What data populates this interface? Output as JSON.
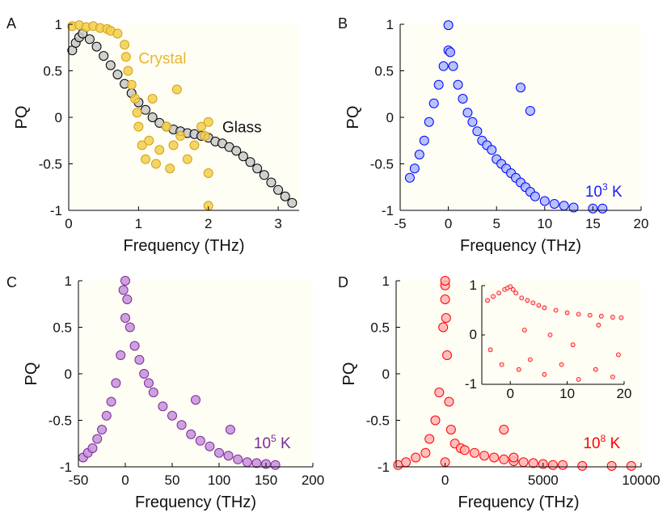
{
  "figure": {
    "background": "#ffffff",
    "plot_bg": "#fffef4"
  },
  "chart_data": [
    {
      "type": "scatter",
      "panel_label": "A",
      "xlabel": "Frequency (THz)",
      "ylabel": "PQ",
      "xlim": [
        0,
        3.3
      ],
      "ylim": [
        -1,
        1
      ],
      "xticks": [
        0,
        1,
        2,
        3
      ],
      "yticks": [
        -1,
        -0.5,
        0,
        0.5,
        1
      ],
      "xticklabels": [
        "0",
        "1",
        "2",
        "3"
      ],
      "yticklabels": [
        "-1",
        "-0.5",
        "0",
        "0.5",
        "1"
      ],
      "series": [
        {
          "name": "Glass",
          "color": "#000000",
          "fill": "#c8c8c8",
          "x": [
            0.05,
            0.1,
            0.15,
            0.2,
            0.3,
            0.4,
            0.5,
            0.6,
            0.7,
            0.8,
            0.9,
            1.0,
            1.1,
            1.2,
            1.3,
            1.4,
            1.5,
            1.6,
            1.7,
            1.8,
            1.9,
            2.0,
            2.1,
            2.2,
            2.3,
            2.4,
            2.5,
            2.6,
            2.7,
            2.8,
            2.9,
            3.0,
            3.1,
            3.2
          ],
          "y": [
            0.72,
            0.8,
            0.86,
            0.9,
            0.84,
            0.76,
            0.66,
            0.56,
            0.46,
            0.36,
            0.26,
            0.16,
            0.08,
            0.0,
            -0.06,
            -0.1,
            -0.13,
            -0.15,
            -0.17,
            -0.18,
            -0.2,
            -0.22,
            -0.26,
            -0.28,
            -0.32,
            -0.36,
            -0.42,
            -0.48,
            -0.55,
            -0.62,
            -0.7,
            -0.78,
            -0.85,
            -0.92
          ]
        },
        {
          "name": "Crystal",
          "color": "#d4a017",
          "fill": "#f2cf4a",
          "x": [
            0.05,
            0.15,
            0.25,
            0.35,
            0.45,
            0.55,
            0.6,
            0.7,
            0.8,
            0.82,
            0.85,
            0.9,
            0.95,
            0.98,
            1.0,
            1.05,
            1.1,
            1.15,
            1.2,
            1.25,
            1.3,
            1.4,
            1.45,
            1.5,
            1.55,
            1.6,
            1.7,
            1.8,
            1.9,
            1.95,
            2.0,
            2.0,
            2.0
          ],
          "y": [
            0.98,
            0.99,
            0.97,
            0.98,
            0.96,
            0.95,
            0.93,
            0.9,
            0.78,
            0.65,
            0.5,
            0.35,
            0.2,
            0.05,
            -0.1,
            -0.3,
            -0.45,
            -0.25,
            0.2,
            -0.5,
            -0.35,
            -0.1,
            -0.55,
            -0.3,
            0.3,
            -0.2,
            -0.45,
            -0.3,
            -0.1,
            -0.2,
            -0.05,
            -0.6,
            -0.95
          ]
        }
      ],
      "annotations": [
        {
          "text": "Crystal",
          "x": 1.0,
          "y": 0.58,
          "color": "#e6b62e"
        },
        {
          "text": "Glass",
          "x": 2.2,
          "y": -0.16,
          "color": "#111111"
        }
      ]
    },
    {
      "type": "scatter",
      "panel_label": "B",
      "xlabel": "Frequency (THz)",
      "ylabel": "PQ",
      "xlim": [
        -5,
        20
      ],
      "ylim": [
        -1,
        1
      ],
      "xticks": [
        -5,
        0,
        5,
        10,
        15,
        20
      ],
      "yticks": [
        -1,
        -0.5,
        0,
        0.5,
        1
      ],
      "xticklabels": [
        "-5",
        "0",
        "5",
        "10",
        "15",
        "20"
      ],
      "yticklabels": [
        "-1",
        "-0.5",
        "0",
        "0.5",
        "1"
      ],
      "series": [
        {
          "name": "10^3 K",
          "color": "#0000ff",
          "fill": "#a9b7ff",
          "x": [
            -4,
            -3.5,
            -3,
            -2.5,
            -2,
            -1.5,
            -1,
            -0.5,
            0,
            0.2,
            0.5,
            1,
            1.5,
            2,
            2.5,
            3,
            3.5,
            4,
            4.5,
            5,
            5.5,
            6,
            6.5,
            7,
            7.5,
            8,
            8.5,
            9,
            10,
            11,
            12,
            13,
            15,
            16,
            0,
            7.5,
            8.5
          ],
          "y": [
            -0.65,
            -0.55,
            -0.4,
            -0.25,
            -0.05,
            0.15,
            0.35,
            0.55,
            0.72,
            0.7,
            0.55,
            0.35,
            0.2,
            0.05,
            -0.05,
            -0.15,
            -0.25,
            -0.3,
            -0.35,
            -0.45,
            -0.5,
            -0.55,
            -0.6,
            -0.65,
            -0.7,
            -0.75,
            -0.8,
            -0.85,
            -0.9,
            -0.93,
            -0.95,
            -0.97,
            -0.98,
            -0.98,
            0.99,
            0.32,
            0.07
          ]
        }
      ],
      "annotations": [
        {
          "text": "10",
          "sup": "3",
          "suffix": " K",
          "x": 14.2,
          "y": -0.85,
          "color": "#1a1aff"
        }
      ]
    },
    {
      "type": "scatter",
      "panel_label": "C",
      "xlabel": "Frequency (THz)",
      "ylabel": "PQ",
      "xlim": [
        -50,
        200
      ],
      "ylim": [
        -1,
        1
      ],
      "xticks": [
        -50,
        0,
        50,
        100,
        150,
        200
      ],
      "yticks": [
        -1,
        -0.5,
        0,
        0.5,
        1
      ],
      "xticklabels": [
        "-50",
        "0",
        "50",
        "100",
        "150",
        "200"
      ],
      "yticklabels": [
        "-1",
        "-0.5",
        "0",
        "0.5",
        "1"
      ],
      "series": [
        {
          "name": "10^5 K",
          "color": "#7a2a9a",
          "fill": "#c58fdc",
          "x": [
            -45,
            -40,
            -35,
            -30,
            -25,
            -20,
            -15,
            -10,
            -5,
            0,
            2,
            5,
            10,
            15,
            20,
            25,
            30,
            40,
            50,
            60,
            70,
            80,
            90,
            100,
            110,
            120,
            130,
            140,
            150,
            160,
            0,
            -2,
            75,
            112
          ],
          "y": [
            -0.9,
            -0.85,
            -0.8,
            -0.7,
            -0.6,
            -0.45,
            -0.3,
            -0.1,
            0.2,
            0.6,
            0.8,
            0.5,
            0.3,
            0.15,
            0.0,
            -0.1,
            -0.2,
            -0.35,
            -0.45,
            -0.55,
            -0.65,
            -0.72,
            -0.78,
            -0.85,
            -0.88,
            -0.92,
            -0.95,
            -0.96,
            -0.97,
            -0.98,
            1.0,
            0.9,
            -0.28,
            -0.6
          ]
        }
      ],
      "annotations": [
        {
          "text": "10",
          "sup": "5",
          "suffix": " K",
          "x": 137,
          "y": -0.8,
          "color": "#7a2a9a"
        }
      ]
    },
    {
      "type": "scatter",
      "panel_label": "D",
      "xlabel": "Frequency (THz)",
      "ylabel": "PQ",
      "xlim": [
        -2500,
        10000
      ],
      "ylim": [
        -1,
        1
      ],
      "xticks": [
        0,
        5000,
        10000
      ],
      "yticks": [
        -1,
        -0.5,
        0,
        0.5,
        1
      ],
      "xticklabels": [
        "0",
        "5000",
        "10000"
      ],
      "yticklabels": [
        "-1",
        "-0.5",
        "0",
        "0.5",
        "1"
      ],
      "series": [
        {
          "name": "10^8 K",
          "color": "#ff0000",
          "fill": "#ffb3b3",
          "x": [
            -2400,
            -2000,
            -1500,
            -1000,
            -800,
            -500,
            -300,
            -100,
            0,
            50,
            100,
            200,
            300,
            500,
            800,
            1000,
            1500,
            2000,
            2500,
            3000,
            3500,
            4000,
            4500,
            5000,
            5500,
            6000,
            7000,
            8500,
            9500,
            0,
            0,
            0,
            3000,
            3500
          ],
          "y": [
            -0.98,
            -0.95,
            -0.9,
            -0.85,
            -0.7,
            -0.5,
            -0.2,
            0.5,
            0.95,
            0.6,
            0.2,
            -0.3,
            -0.6,
            -0.75,
            -0.8,
            -0.82,
            -0.85,
            -0.88,
            -0.9,
            -0.92,
            -0.94,
            -0.95,
            -0.96,
            -0.97,
            -0.98,
            -0.98,
            -0.99,
            -0.99,
            -0.99,
            1.0,
            0.8,
            -0.95,
            -0.6,
            -0.9
          ]
        }
      ],
      "annotations": [
        {
          "text": "10",
          "sup": "8",
          "suffix": " K",
          "x": 7050,
          "y": -0.8,
          "color": "#ff0000"
        }
      ],
      "inset": {
        "xlim": [
          -5,
          20
        ],
        "ylim": [
          -1,
          1
        ],
        "xticks": [
          0,
          10,
          20
        ],
        "yticks": [
          -1,
          0,
          1
        ],
        "xticklabels": [
          "0",
          "10",
          "20"
        ],
        "yticklabels": [
          "-1",
          "0",
          "1"
        ],
        "series": [
          {
            "name": "10^8 K inset",
            "color": "#ff0000",
            "fill": "#ffd0d0",
            "x": [
              -4,
              -3,
              -2,
              -1,
              -0.5,
              0,
              0.5,
              1,
              2,
              3,
              4,
              5,
              6,
              8,
              10,
              12,
              14,
              16,
              18,
              19.5,
              -3.5,
              -1.5,
              1.5,
              3.5,
              6,
              9,
              12,
              15,
              18,
              2.5,
              7,
              11,
              15.5,
              19
            ],
            "y": [
              0.7,
              0.78,
              0.85,
              0.92,
              0.95,
              0.98,
              0.92,
              0.85,
              0.75,
              0.7,
              0.65,
              0.6,
              0.55,
              0.5,
              0.45,
              0.42,
              0.4,
              0.38,
              0.36,
              0.35,
              -0.3,
              -0.6,
              -0.7,
              -0.5,
              -0.8,
              -0.6,
              -0.9,
              -0.7,
              -0.85,
              0.1,
              0.0,
              -0.2,
              0.2,
              -0.4
            ]
          }
        ]
      }
    }
  ]
}
